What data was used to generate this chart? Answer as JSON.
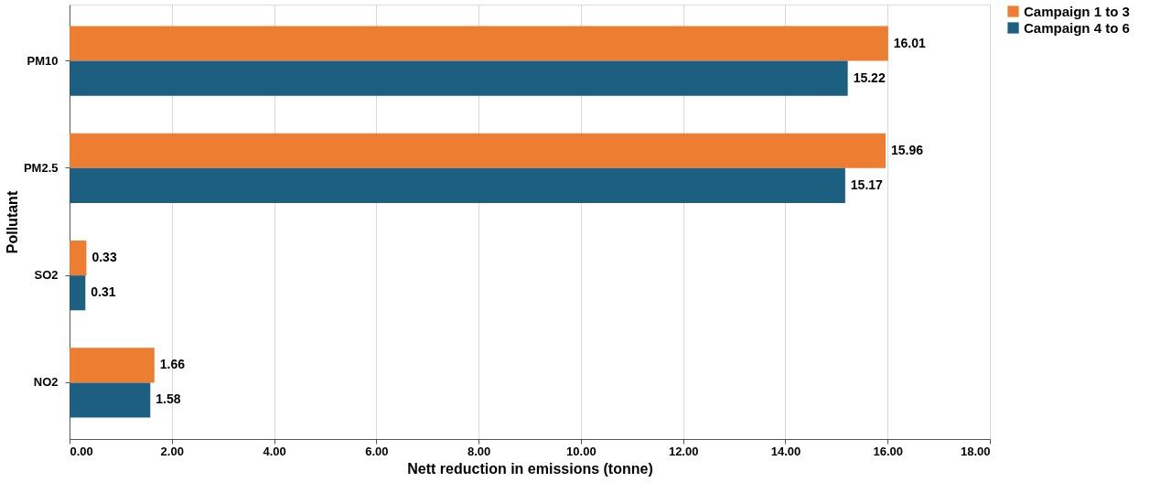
{
  "chart_data": {
    "type": "bar",
    "orientation": "horizontal",
    "xlabel": "Nett reduction in emissions (tonne)",
    "ylabel": "Pollutant",
    "categories": [
      "PM10",
      "PM2.5",
      "SO2",
      "NO2"
    ],
    "series": [
      {
        "name": "Campaign 1 to 3",
        "color": "#ed7d31",
        "values": [
          16.01,
          15.96,
          0.33,
          1.66
        ]
      },
      {
        "name": "Campaign 4 to 6",
        "color": "#1d5f80",
        "values": [
          15.22,
          15.17,
          0.31,
          1.58
        ]
      }
    ],
    "xlim": [
      0,
      18
    ],
    "xticks": [
      {
        "value": 0,
        "label": "0.00"
      },
      {
        "value": 2,
        "label": "2.00"
      },
      {
        "value": 4,
        "label": "4.00"
      },
      {
        "value": 6,
        "label": "6.00"
      },
      {
        "value": 8,
        "label": "8.00"
      },
      {
        "value": 10,
        "label": "10.00"
      },
      {
        "value": 12,
        "label": "12.00"
      },
      {
        "value": 14,
        "label": "14.00"
      },
      {
        "value": 16,
        "label": "16.00"
      },
      {
        "value": 18,
        "label": "18.00"
      }
    ],
    "grid": "x",
    "legend": "right",
    "data_labels": true
  }
}
